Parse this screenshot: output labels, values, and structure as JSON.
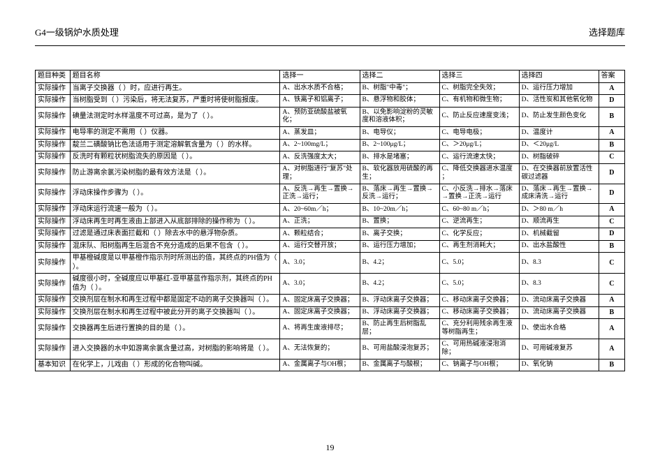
{
  "header": {
    "left_title": "G4一级锅炉水质处理",
    "right_title": "选择题库"
  },
  "page_number": "19",
  "table": {
    "headers": {
      "category": "题目种类",
      "name": "题目名称",
      "opt1": "选择一",
      "opt2": "选择二",
      "opt3": "选择三",
      "opt4": "选择四",
      "answer": "答案"
    },
    "rows": [
      {
        "category": "实际操作",
        "name": "当离子交换器（ ）时，应进行再生。",
        "opt1": "A、出水水质不合格；",
        "opt2": "B、树脂\"中毒\"；",
        "opt3": "C、树脂完全失效；",
        "opt4": "D、运行压力增加",
        "answer": "A"
      },
      {
        "category": "实际操作",
        "name": "当树脂受到（ ）污染后，将无法复苏，严重时将使树脂报废。",
        "opt1": "A、铁离子和铝离子；",
        "opt2": "B、悬浮物和胶体；",
        "opt3": "C、有机物和微生物；",
        "opt4": "D、活性炭和其他氧化物",
        "answer": "D"
      },
      {
        "category": "实际操作",
        "name": "碘量法测定时水样温度不可过高，是为了（ ）。",
        "opt1": "A、预防亚硫酸盐被氧化；",
        "opt2": "B、以免影响淀粉的灵敏度和溶液体积；",
        "opt3": "C、防止反应速度变浅；",
        "opt4": "D、防止发生颜色变化",
        "answer": "B"
      },
      {
        "category": "实际操作",
        "name": "电导率的测定不需用（ ）仪器。",
        "opt1": "A、蒸发皿；",
        "opt2": "B、电导仪；",
        "opt3": "C、电导电极；",
        "opt4": "D、温度计",
        "answer": "A"
      },
      {
        "category": "实际操作",
        "name": "靛兰二磺酸钠比色法适用于测定溶解氧含量为（ ）的水样。",
        "opt1": "A、2~100mg/L；",
        "opt2": "B、2~100μg/L；",
        "opt3": "C、＞20μg/L；",
        "opt4": "D、＜20μg/L",
        "answer": "B"
      },
      {
        "category": "实际操作",
        "name": "反洗时有颗粒状树脂流失的原因是（ ）。",
        "opt1": "A、反洗强度太大；",
        "opt2": "B、排水是堵塞；",
        "opt3": "C、运行流速太快；",
        "opt4": "D、树脂破碎",
        "answer": "C"
      },
      {
        "category": "实际操作",
        "name": "防止游离余氯污染树脂的最有效方法是（ ）。",
        "opt1": "A、对树脂进行\"复苏\"处理；",
        "opt2": "B、软化器放用硫酸的再生；",
        "opt3": "C、降低交换器进水温度 ；",
        "opt4": "D、在交换器前放置活性碳过滤器",
        "answer": "D"
      },
      {
        "category": "实际操作",
        "name": "浮动床操作步骤为（ ）。",
        "opt1": "A、反洗→再生→置换→正洗→运行；",
        "opt2": "B、落床→再生→置换→反洗→运行；",
        "opt3": "C、小反洗→排水→落床→置换→正洗→运行",
        "opt4": "D、落床→再生→置换→成床清洗→运行",
        "answer": "D"
      },
      {
        "category": "实际操作",
        "name": "浮动床运行流速一般为（ ）。",
        "opt1": "A、20~60m／h；",
        "opt2": "B、10~20m／h；",
        "opt3": "C、60~80 m／h；",
        "opt4": "D、＞80 m／h",
        "answer": "A"
      },
      {
        "category": "实际操作",
        "name": "浮动床再生时再生液由上部进入从底部排除的操作称为（ ）。",
        "opt1": "A、正洗；",
        "opt2": "B、置换；",
        "opt3": "C、逆流再生；",
        "opt4": "D、顺流再生",
        "answer": "C"
      },
      {
        "category": "实际操作",
        "name": "过滤是通过床表面拦截和（ ）除去水中的悬浮物杂质。",
        "opt1": "A、颗粒结合；",
        "opt2": "B、离子交换；",
        "opt3": "C、化学反应；",
        "opt4": "D、机械截留",
        "answer": "D"
      },
      {
        "category": "实际操作",
        "name": "混床队、阳树脂再生后混合不充分造成的后果不包含（ ）。",
        "opt1": "A、运行交替开放；",
        "opt2": "B、运行压力增加；",
        "opt3": "C、再生剂消耗大；",
        "opt4": "D、出水盐酸性",
        "answer": "B"
      },
      {
        "category": "实际操作",
        "name": "甲基橙碱度是以甲基橙作指示剂时所测出的值，其终点的PH值为（ ）。",
        "opt1": "A、3.0；",
        "opt2": "B、4.2；",
        "opt3": "C、5.0；",
        "opt4": "D、8.3",
        "answer": "C"
      },
      {
        "category": "实际操作",
        "name": "碱度很小时，全碱度应以甲基红-亚甲基蓝作指示剂，其终点的PH值为（ ）。",
        "opt1": "A、3.0；",
        "opt2": "B、4.2；",
        "opt3": "C、5.0；",
        "opt4": "D、8.3",
        "answer": "C"
      },
      {
        "category": "实际操作",
        "name": "交换剂层在制水和再生过程中都是固定不动的离子交换器叫（ ）。",
        "opt1": "A、固定床离子交换器；",
        "opt2": "B、浮动床离子交换器；",
        "opt3": "C、移动床离子交换器；",
        "opt4": "D、流动床离子交换器",
        "answer": "A"
      },
      {
        "category": "实际操作",
        "name": "交换剂层在制水和再生过程中被此分开的离子交换器叫（ ）。",
        "opt1": "A、固定床离子交换器；",
        "opt2": "B、浮动床离子交换器；",
        "opt3": "C、移动床离子交换器；",
        "opt4": "D、流动床离子交换器",
        "answer": "B"
      },
      {
        "category": "实际操作",
        "name": "交换器再生后进行置换的目的是（ ）。",
        "opt1": "A、将再生废液排尽；",
        "opt2": "B、防止再生后树脂乱层；",
        "opt3": "C、充分利用残余再生液等树脂再生；",
        "opt4": "D、使出水合格",
        "answer": "A"
      },
      {
        "category": "实际操作",
        "name": "进入交换器的水中如游离余氯含量过高，对树脂的影响将是（ ）。",
        "opt1": "A、无法恢复的；",
        "opt2": "B、可用盐酸浸泡复苏；",
        "opt3": "C、可用热碱液浸泡消除；",
        "opt4": "D、可用碱液复苏",
        "answer": "A"
      },
      {
        "category": "基本知识",
        "name": "在化学上，儿戏由（ ）形成的化合物叫碱。",
        "opt1": "A、金属离子与OH根；",
        "opt2": "B、金属离子与酸根；",
        "opt3": "C、钠离子与OH根；",
        "opt4": "D、氧化钠",
        "answer": "B"
      }
    ]
  }
}
